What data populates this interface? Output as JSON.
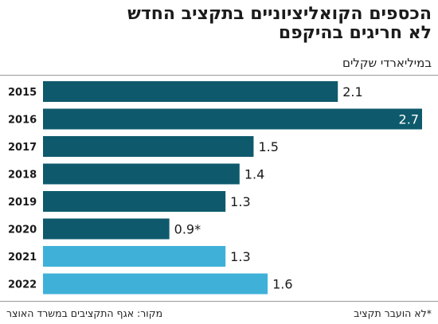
{
  "header": {
    "title_line1": "הכספים הקואליציוניים בתקציב החדש",
    "title_line2": "לא חריגים בהיקפם",
    "subtitle": "במיליארדי שקלים"
  },
  "footer": {
    "source": "מקור: אגף התקציבים במשרד האוצר",
    "note": "*לא הועבר תקציב"
  },
  "colors": {
    "dark_bar": "#0e5a6c",
    "light_bar": "#3fb1d9",
    "label_on_bar": "#ffffff",
    "label_text": "#1a1a1a"
  },
  "chart_data": {
    "type": "bar",
    "orientation": "horizontal",
    "categories": [
      "2015",
      "2016",
      "2017",
      "2018",
      "2019",
      "2020",
      "2021",
      "2022"
    ],
    "values": [
      2.1,
      2.7,
      1.5,
      1.4,
      1.3,
      0.9,
      1.3,
      1.6
    ],
    "value_labels": [
      "2.1",
      "2.7",
      "1.5",
      "1.4",
      "1.3",
      "0.9*",
      "1.3",
      "1.6"
    ],
    "bar_styles": [
      "dark",
      "dark",
      "dark",
      "dark",
      "dark",
      "dark",
      "light",
      "light"
    ],
    "xlim": [
      0,
      2.7
    ],
    "grid": false,
    "legend": "none"
  }
}
